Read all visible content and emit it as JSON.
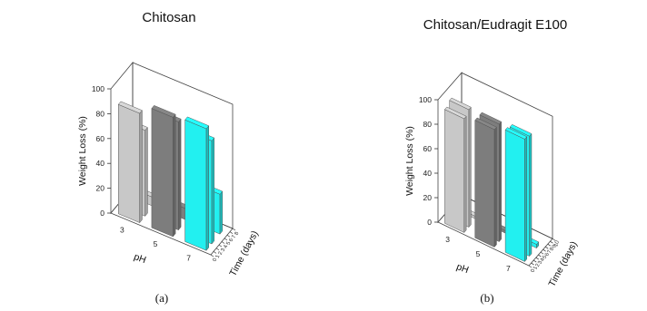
{
  "panels": [
    {
      "label": "(a)"
    },
    {
      "label": "(b)"
    }
  ],
  "chart_data": [
    {
      "type": "bar",
      "title": "Chitosan",
      "ylabel": "Weight Loss (%)",
      "xlabel": "pH",
      "zlabel": "Time (days)",
      "ylim": [
        0,
        100
      ],
      "y_ticks": [
        0,
        20,
        40,
        60,
        80,
        100
      ],
      "ph_ticks": [
        "3",
        "5",
        "7"
      ],
      "time_ticks": [
        "0",
        "1",
        "2",
        "3",
        "4",
        "5",
        "6",
        "7",
        "8"
      ],
      "colors": {
        "pH 3": "#c8c8c8",
        "pH 5": "#7d7d7d",
        "pH 7": "#22f0f0"
      },
      "series": [
        {
          "name": "pH 3",
          "values": [
            {
              "time": 1,
              "value": 88
            },
            {
              "time": 3,
              "value": 69
            },
            {
              "time": 6,
              "value": 7
            }
          ]
        },
        {
          "name": "pH 5",
          "values": [
            {
              "time": 1,
              "value": 96
            },
            {
              "time": 3,
              "value": 87
            },
            {
              "time": 6,
              "value": 9
            }
          ]
        },
        {
          "name": "pH 7",
          "values": [
            {
              "time": 1,
              "value": 98
            },
            {
              "time": 3,
              "value": 83
            },
            {
              "time": 6,
              "value": 32
            }
          ]
        }
      ]
    },
    {
      "type": "bar",
      "title": "Chitosan/Eudragit E100",
      "ylabel": "Weight Loss (%)",
      "xlabel": "pH",
      "zlabel": "Time (days)",
      "ylim": [
        0,
        100
      ],
      "y_ticks": [
        0,
        20,
        40,
        60,
        80,
        100
      ],
      "ph_ticks": [
        "3",
        "5",
        "7"
      ],
      "time_ticks": [
        "0",
        "1",
        "2",
        "3",
        "4",
        "5",
        "6",
        "7",
        "8",
        "9",
        "10"
      ],
      "colors": {
        "pH 3": "#c8c8c8",
        "pH 5": "#7d7d7d",
        "pH 7": "#22f0f0"
      },
      "series": [
        {
          "name": "pH 3",
          "values": [
            {
              "time": 1,
              "value": 93
            },
            {
              "time": 3,
              "value": 96
            },
            {
              "time": 6,
              "value": 2
            }
          ]
        },
        {
          "name": "pH 5",
          "values": [
            {
              "time": 1,
              "value": 96
            },
            {
              "time": 3,
              "value": 96
            },
            {
              "time": 6,
              "value": 2
            }
          ]
        },
        {
          "name": "pH 7",
          "values": [
            {
              "time": 1,
              "value": 100
            },
            {
              "time": 3,
              "value": 98
            },
            {
              "time": 6,
              "value": 3
            }
          ]
        }
      ]
    }
  ]
}
